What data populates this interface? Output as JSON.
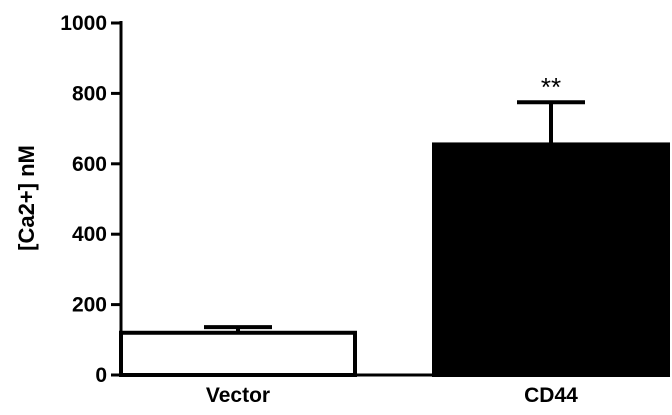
{
  "chart_data": {
    "type": "bar",
    "categories": [
      "Vector",
      "CD44"
    ],
    "values": [
      120,
      655
    ],
    "error_upper": [
      136,
      775
    ],
    "annotations": [
      "",
      "**"
    ],
    "bar_colors": [
      "#ffffff",
      "#000000"
    ],
    "bar_edge_color": "#000000",
    "xlabel": "",
    "ylabel": "[Ca2+] nM",
    "ylim": [
      0,
      1000
    ],
    "yticks": [
      0,
      200,
      400,
      600,
      800,
      1000
    ],
    "grid": false
  }
}
